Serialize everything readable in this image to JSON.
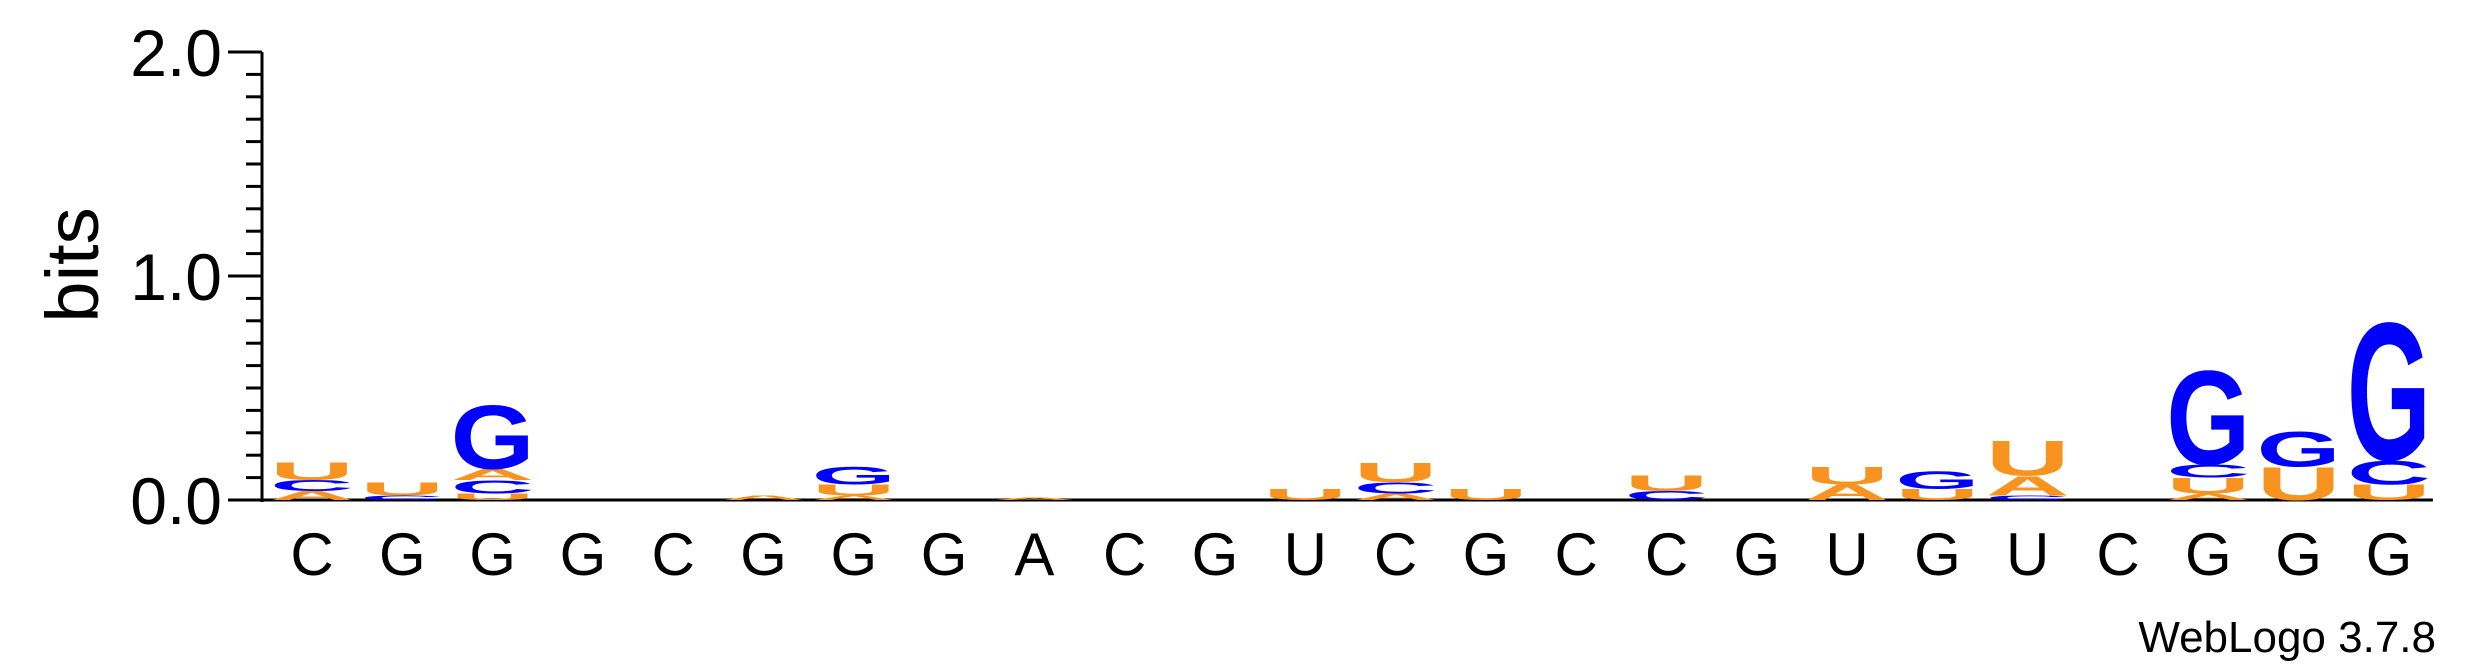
{
  "chart_data": {
    "type": "sequence-logo",
    "ylabel": "bits",
    "ylim": [
      0,
      2.0
    ],
    "yticks": [
      "0.0",
      "1.0",
      "2.0"
    ],
    "credit": "WebLogo 3.7.8",
    "colors": {
      "A": "#f7931e",
      "U": "#f7931e",
      "G": "#0000ff",
      "C": "#0000ff"
    },
    "positions": [
      {
        "label": "C",
        "stack": [
          [
            "A",
            0.04
          ],
          [
            "C",
            0.05
          ],
          [
            "U",
            0.08
          ]
        ]
      },
      {
        "label": "G",
        "stack": [
          [
            "C",
            0.02
          ],
          [
            "U",
            0.06
          ]
        ]
      },
      {
        "label": "G",
        "stack": [
          [
            "U",
            0.03
          ],
          [
            "C",
            0.06
          ],
          [
            "A",
            0.05
          ],
          [
            "G",
            0.29
          ]
        ]
      },
      {
        "label": "G",
        "stack": []
      },
      {
        "label": "C",
        "stack": []
      },
      {
        "label": "G",
        "stack": [
          [
            "A",
            0.02
          ]
        ]
      },
      {
        "label": "G",
        "stack": [
          [
            "A",
            0.02
          ],
          [
            "U",
            0.05
          ],
          [
            "G",
            0.08
          ]
        ]
      },
      {
        "label": "G",
        "stack": []
      },
      {
        "label": "A",
        "stack": [
          [
            "A",
            0.01
          ]
        ]
      },
      {
        "label": "C",
        "stack": []
      },
      {
        "label": "G",
        "stack": []
      },
      {
        "label": "U",
        "stack": [
          [
            "U",
            0.05
          ]
        ]
      },
      {
        "label": "C",
        "stack": [
          [
            "A",
            0.03
          ],
          [
            "C",
            0.05
          ],
          [
            "U",
            0.09
          ]
        ]
      },
      {
        "label": "G",
        "stack": [
          [
            "U",
            0.05
          ]
        ]
      },
      {
        "label": "C",
        "stack": []
      },
      {
        "label": "C",
        "stack": [
          [
            "C",
            0.04
          ],
          [
            "U",
            0.07
          ]
        ]
      },
      {
        "label": "G",
        "stack": []
      },
      {
        "label": "U",
        "stack": [
          [
            "A",
            0.07
          ],
          [
            "U",
            0.08
          ]
        ]
      },
      {
        "label": "G",
        "stack": [
          [
            "U",
            0.05
          ],
          [
            "G",
            0.08
          ]
        ]
      },
      {
        "label": "U",
        "stack": [
          [
            "C",
            0.02
          ],
          [
            "A",
            0.09
          ],
          [
            "U",
            0.16
          ]
        ]
      },
      {
        "label": "C",
        "stack": []
      },
      {
        "label": "G",
        "stack": [
          [
            "A",
            0.03
          ],
          [
            "U",
            0.07
          ],
          [
            "C",
            0.06
          ],
          [
            "G",
            0.43
          ]
        ]
      },
      {
        "label": "G",
        "stack": [
          [
            "U",
            0.15
          ],
          [
            "G",
            0.16
          ]
        ]
      },
      {
        "label": "G",
        "stack": [
          [
            "U",
            0.07
          ],
          [
            "C",
            0.11
          ],
          [
            "G",
            0.63
          ]
        ]
      }
    ]
  }
}
